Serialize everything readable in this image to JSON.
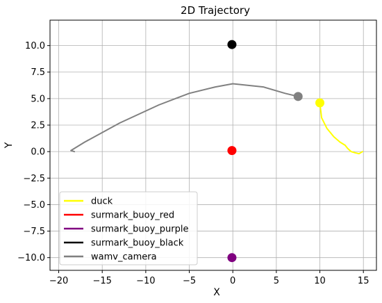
{
  "chart_data": {
    "type": "scatter",
    "title": "2D Trajectory",
    "xlabel": "X",
    "ylabel": "Y",
    "xlim": [
      -21,
      16.5
    ],
    "ylim": [
      -11.2,
      12.4
    ],
    "grid": true,
    "x_ticks": [
      -20,
      -15,
      -10,
      -5,
      0,
      5,
      10,
      15
    ],
    "x_tick_labels": [
      "−20",
      "−15",
      "−10",
      "−5",
      "0",
      "5",
      "10",
      "15"
    ],
    "y_ticks": [
      10,
      7.5,
      5,
      2.5,
      0,
      -2.5,
      -5,
      -7.5,
      -10
    ],
    "y_tick_labels": [
      "10.0",
      "7.5",
      "5.0",
      "2.5",
      "0.0",
      "−2.5",
      "−5.0",
      "−7.5",
      "−10.0"
    ],
    "legend_position": "lower-left",
    "series": [
      {
        "name": "duck",
        "color": "#ffff00",
        "line": [
          [
            10.0,
            4.6
          ],
          [
            10.2,
            3.2
          ],
          [
            10.8,
            2.2
          ],
          [
            11.6,
            1.4
          ],
          [
            12.3,
            0.9
          ],
          [
            12.9,
            0.6
          ],
          [
            13.2,
            0.3
          ],
          [
            13.6,
            0.0
          ],
          [
            14.0,
            -0.1
          ],
          [
            14.5,
            -0.2
          ],
          [
            14.9,
            0.0
          ]
        ],
        "marker": [
          10.0,
          4.6
        ]
      },
      {
        "name": "surmark_buoy_red",
        "color": "#ff0000",
        "line": [],
        "marker": [
          -0.1,
          0.1
        ]
      },
      {
        "name": "surmark_buoy_purple",
        "color": "#800080",
        "line": [],
        "marker": [
          -0.1,
          -10.0
        ]
      },
      {
        "name": "surmark_buoy_black",
        "color": "#000000",
        "line": [],
        "marker": [
          -0.1,
          10.1
        ]
      },
      {
        "name": "wamv_camera",
        "color": "#808080",
        "line": [
          [
            -18.2,
            0.0
          ],
          [
            -18.6,
            0.1
          ],
          [
            -17.0,
            0.9
          ],
          [
            -13.0,
            2.7
          ],
          [
            -8.5,
            4.4
          ],
          [
            -5.0,
            5.5
          ],
          [
            -2.0,
            6.1
          ],
          [
            0.0,
            6.4
          ],
          [
            3.5,
            6.1
          ],
          [
            6.0,
            5.5
          ],
          [
            7.5,
            5.2
          ]
        ],
        "marker": [
          7.5,
          5.2
        ]
      }
    ]
  }
}
